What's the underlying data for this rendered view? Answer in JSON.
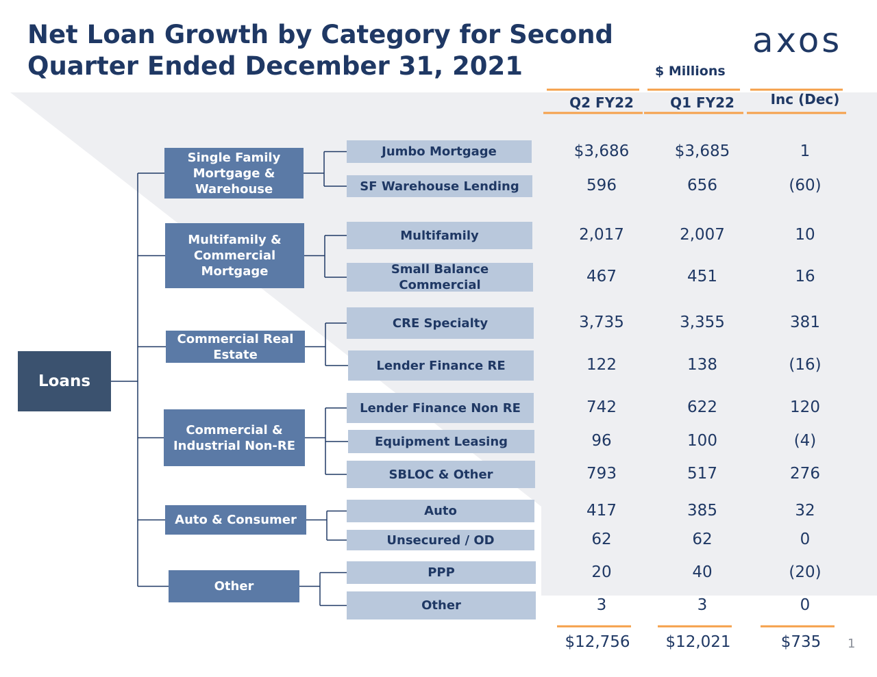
{
  "header": {
    "title_lines": [
      "Net Loan Growth by Category for Second",
      "Quarter Ended December 31, 2021"
    ],
    "logo": "axos",
    "units": "$ Millions"
  },
  "columns": [
    "Q2 FY22",
    "Q1 FY22",
    "Inc (Dec)"
  ],
  "root": "Loans",
  "groups": [
    {
      "label": "Single Family Mortgage & Warehouse",
      "items": [
        {
          "label": "Jumbo Mortgage",
          "values": [
            "$3,686",
            "$3,685",
            "1"
          ]
        },
        {
          "label": "SF Warehouse Lending",
          "values": [
            "596",
            "656",
            "(60)"
          ]
        }
      ]
    },
    {
      "label": "Multifamily & Commercial Mortgage",
      "items": [
        {
          "label": "Multifamily",
          "values": [
            "2,017",
            "2,007",
            "10"
          ]
        },
        {
          "label": "Small Balance Commercial",
          "values": [
            "467",
            "451",
            "16"
          ]
        }
      ]
    },
    {
      "label": "Commercial Real Estate",
      "items": [
        {
          "label": "CRE Specialty",
          "values": [
            "3,735",
            "3,355",
            "381"
          ]
        },
        {
          "label": "Lender Finance RE",
          "values": [
            "122",
            "138",
            "(16)"
          ]
        }
      ]
    },
    {
      "label": "Commercial & Industrial Non-RE",
      "items": [
        {
          "label": "Lender Finance Non RE",
          "values": [
            "742",
            "622",
            "120"
          ]
        },
        {
          "label": "Equipment Leasing",
          "values": [
            "96",
            "100",
            "(4)"
          ]
        },
        {
          "label": "SBLOC & Other",
          "values": [
            "793",
            "517",
            "276"
          ]
        }
      ]
    },
    {
      "label": "Auto & Consumer",
      "items": [
        {
          "label": "Auto",
          "values": [
            "417",
            "385",
            "32"
          ]
        },
        {
          "label": "Unsecured / OD",
          "values": [
            "62",
            "62",
            "0"
          ]
        }
      ]
    },
    {
      "label": "Other",
      "items": [
        {
          "label": "PPP",
          "values": [
            "20",
            "40",
            "(20)"
          ]
        },
        {
          "label": "Other",
          "values": [
            "3",
            "3",
            "0"
          ]
        }
      ]
    }
  ],
  "totals": [
    "$12,756",
    "$12,021",
    "$735"
  ],
  "page_number": "1"
}
